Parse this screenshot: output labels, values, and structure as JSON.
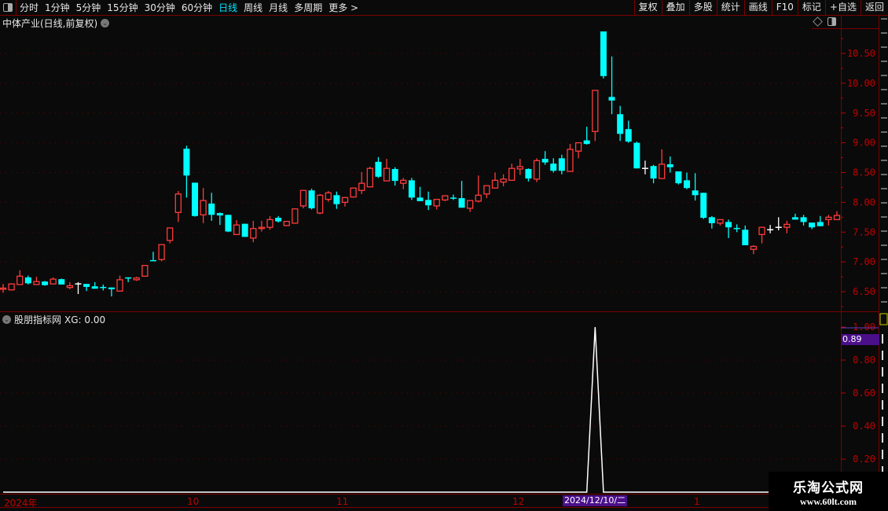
{
  "toolbar": {
    "periods": [
      "分时",
      "1分钟",
      "5分钟",
      "15分钟",
      "30分钟",
      "60分钟",
      "日线",
      "周线",
      "月线",
      "多周期",
      "更多 >"
    ],
    "active_period": "日线",
    "buttons": [
      "复权",
      "叠加",
      "多股",
      "统计",
      "画线",
      "F10",
      "标记",
      "+自选",
      "返回"
    ]
  },
  "main_panel": {
    "title": "中体产业(日线,前复权)",
    "price_ticks": [
      "10.50",
      "10.00",
      "9.50",
      "9.00",
      "8.50",
      "8.00",
      "7.50",
      "7.00",
      "6.50"
    ]
  },
  "indicator_panel": {
    "title": "股朋指标网",
    "readout": "XG: 0.00",
    "ticks": [
      "1.00",
      "0.80",
      "0.60",
      "0.40",
      "0.20"
    ],
    "cursor_value": "0.89"
  },
  "date_axis": {
    "labels": [
      "2024年",
      "10",
      "11",
      "12",
      "1"
    ],
    "cursor_date": "2024/12/10/二"
  },
  "watermark": {
    "line1": "乐淘公式网",
    "line2": "www.60lt.com"
  },
  "colors": {
    "up": "#ff3b3b",
    "down": "#00ffff",
    "flat": "#ffffff",
    "axis": "#c00000",
    "border": "#7a0000",
    "highlight": "#4b0f8a"
  },
  "chart_data": {
    "type": "candlestick",
    "ylim": [
      6.3,
      10.9
    ],
    "ohlc_format": [
      "open",
      "close",
      "high",
      "low"
    ],
    "candles": [
      [
        6.54,
        6.56,
        6.63,
        6.48
      ],
      [
        6.53,
        6.63,
        6.64,
        6.53
      ],
      [
        6.62,
        6.76,
        6.86,
        6.62
      ],
      [
        6.74,
        6.64,
        6.77,
        6.62
      ],
      [
        6.62,
        6.67,
        6.75,
        6.62
      ],
      [
        6.67,
        6.61,
        6.68,
        6.6
      ],
      [
        6.63,
        6.71,
        6.74,
        6.63
      ],
      [
        6.71,
        6.62,
        6.72,
        6.62
      ],
      [
        6.57,
        6.6,
        6.66,
        6.54
      ],
      [
        6.63,
        6.63,
        6.66,
        6.46
      ],
      [
        6.63,
        6.58,
        6.63,
        6.51
      ],
      [
        6.59,
        6.55,
        6.66,
        6.55
      ],
      [
        6.58,
        6.56,
        6.62,
        6.52
      ],
      [
        6.57,
        6.54,
        6.57,
        6.42
      ],
      [
        6.51,
        6.7,
        6.77,
        6.5
      ],
      [
        6.74,
        6.72,
        6.74,
        6.66
      ],
      [
        6.7,
        6.73,
        6.75,
        6.68
      ],
      [
        6.76,
        6.94,
        6.94,
        6.75
      ],
      [
        7.03,
        7.02,
        7.17,
        7.02
      ],
      [
        7.04,
        7.29,
        7.29,
        7.01
      ],
      [
        7.36,
        7.57,
        7.57,
        7.31
      ],
      [
        7.83,
        8.14,
        8.19,
        7.67
      ],
      [
        8.9,
        8.45,
        8.95,
        8.08
      ],
      [
        8.33,
        7.77,
        8.33,
        7.76
      ],
      [
        7.79,
        8.03,
        8.24,
        7.65
      ],
      [
        7.98,
        7.79,
        8.16,
        7.69
      ],
      [
        7.82,
        7.78,
        7.83,
        7.62
      ],
      [
        7.79,
        7.51,
        7.79,
        7.5
      ],
      [
        7.46,
        7.62,
        7.7,
        7.45
      ],
      [
        7.64,
        7.42,
        7.64,
        7.42
      ],
      [
        7.4,
        7.56,
        7.69,
        7.33
      ],
      [
        7.56,
        7.58,
        7.69,
        7.51
      ],
      [
        7.58,
        7.71,
        7.77,
        7.54
      ],
      [
        7.74,
        7.68,
        7.77,
        7.66
      ],
      [
        7.61,
        7.68,
        7.68,
        7.6
      ],
      [
        7.65,
        7.89,
        7.89,
        7.64
      ],
      [
        7.94,
        8.2,
        8.2,
        7.9
      ],
      [
        8.2,
        7.9,
        8.23,
        7.88
      ],
      [
        7.82,
        8.12,
        8.14,
        7.8
      ],
      [
        8.05,
        8.16,
        8.19,
        8.01
      ],
      [
        8.12,
        7.97,
        8.18,
        7.89
      ],
      [
        8.0,
        8.08,
        8.09,
        7.93
      ],
      [
        8.09,
        8.24,
        8.25,
        8.08
      ],
      [
        8.2,
        8.32,
        8.51,
        8.14
      ],
      [
        8.26,
        8.57,
        8.6,
        8.25
      ],
      [
        8.68,
        8.43,
        8.76,
        8.41
      ],
      [
        8.36,
        8.57,
        8.73,
        8.36
      ],
      [
        8.56,
        8.36,
        8.59,
        8.28
      ],
      [
        8.32,
        8.37,
        8.41,
        8.22
      ],
      [
        8.37,
        8.08,
        8.41,
        8.04
      ],
      [
        8.08,
        8.02,
        8.26,
        8.02
      ],
      [
        8.04,
        7.95,
        8.18,
        7.87
      ],
      [
        7.94,
        8.05,
        8.05,
        7.88
      ],
      [
        8.04,
        8.11,
        8.12,
        8.02
      ],
      [
        8.08,
        8.07,
        8.13,
        8.04
      ],
      [
        8.07,
        7.91,
        8.36,
        7.91
      ],
      [
        7.9,
        8.03,
        8.03,
        7.84
      ],
      [
        8.02,
        8.12,
        8.45,
        8.0
      ],
      [
        8.14,
        8.28,
        8.28,
        8.07
      ],
      [
        8.24,
        8.37,
        8.5,
        8.23
      ],
      [
        8.34,
        8.39,
        8.47,
        8.27
      ],
      [
        8.37,
        8.57,
        8.65,
        8.37
      ],
      [
        8.56,
        8.6,
        8.73,
        8.46
      ],
      [
        8.56,
        8.4,
        8.57,
        8.35
      ],
      [
        8.39,
        8.7,
        8.74,
        8.34
      ],
      [
        8.73,
        8.67,
        8.86,
        8.63
      ],
      [
        8.65,
        8.53,
        8.74,
        8.5
      ],
      [
        8.74,
        8.53,
        8.8,
        8.47
      ],
      [
        8.52,
        8.89,
        8.98,
        8.52
      ],
      [
        8.86,
        9.0,
        9.0,
        8.74
      ],
      [
        9.04,
        8.98,
        9.27,
        8.97
      ],
      [
        9.19,
        9.88,
        9.88,
        9.03
      ],
      [
        10.87,
        10.12,
        10.87,
        10.08
      ],
      [
        9.77,
        9.71,
        10.45,
        9.48
      ],
      [
        9.48,
        9.15,
        9.62,
        9.03
      ],
      [
        9.23,
        9.02,
        9.37,
        9.0
      ],
      [
        9.0,
        8.57,
        9.02,
        8.57
      ],
      [
        8.57,
        8.57,
        8.7,
        8.47
      ],
      [
        8.61,
        8.4,
        8.63,
        8.32
      ],
      [
        8.4,
        8.64,
        8.89,
        8.4
      ],
      [
        8.64,
        8.59,
        8.77,
        8.5
      ],
      [
        8.52,
        8.32,
        8.52,
        8.3
      ],
      [
        8.37,
        8.24,
        8.5,
        8.22
      ],
      [
        8.2,
        8.12,
        8.49,
        8.03
      ],
      [
        8.16,
        7.74,
        8.16,
        7.72
      ],
      [
        7.75,
        7.65,
        7.77,
        7.56
      ],
      [
        7.65,
        7.71,
        7.71,
        7.61
      ],
      [
        7.67,
        7.58,
        7.71,
        7.4
      ],
      [
        7.57,
        7.56,
        7.63,
        7.5
      ],
      [
        7.54,
        7.28,
        7.61,
        7.28
      ],
      [
        7.21,
        7.26,
        7.28,
        7.13
      ],
      [
        7.46,
        7.58,
        7.59,
        7.31
      ],
      [
        7.54,
        7.54,
        7.62,
        7.48
      ],
      [
        7.58,
        7.58,
        7.75,
        7.53
      ],
      [
        7.58,
        7.63,
        7.69,
        7.48
      ],
      [
        7.75,
        7.71,
        7.81,
        7.71
      ],
      [
        7.75,
        7.67,
        7.79,
        7.61
      ],
      [
        7.66,
        7.58,
        7.66,
        7.55
      ],
      [
        7.67,
        7.6,
        7.77,
        7.6
      ],
      [
        7.71,
        7.75,
        7.79,
        7.61
      ],
      [
        7.71,
        7.78,
        7.85,
        7.71
      ]
    ],
    "indicator": {
      "name": "XG",
      "ylim": [
        0,
        1.0
      ],
      "signal_index": 71,
      "signal_value": 1
    }
  }
}
